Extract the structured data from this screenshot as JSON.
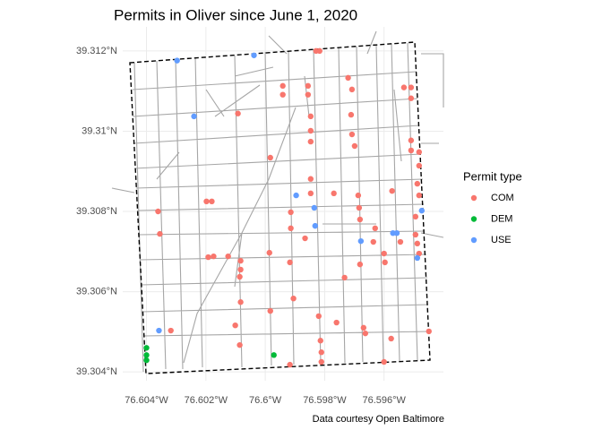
{
  "chart_data": {
    "type": "scatter",
    "title": "Permits in Oliver since June 1, 2020",
    "caption": "Data courtesy Open Baltimore",
    "legend_title": "Permit type",
    "legend": "right",
    "grid": true,
    "xlim": [
      -76.6048,
      -76.594
    ],
    "ylim": [
      39.30378,
      39.3126
    ],
    "xticks": [
      {
        "value": -76.604,
        "label": "76.604°W"
      },
      {
        "value": -76.602,
        "label": "76.602°W"
      },
      {
        "value": -76.6,
        "label": "76.6°W"
      },
      {
        "value": -76.598,
        "label": "76.598°W"
      },
      {
        "value": -76.596,
        "label": "76.596°W"
      }
    ],
    "yticks": [
      {
        "value": 39.304,
        "label": "39.304°N"
      },
      {
        "value": 39.306,
        "label": "39.306°N"
      },
      {
        "value": 39.308,
        "label": "39.308°N"
      },
      {
        "value": 39.31,
        "label": "39.31°N"
      },
      {
        "value": 39.312,
        "label": "39.312°N"
      }
    ],
    "series": [
      {
        "name": "COM",
        "color": "#F8766D",
        "x": [
          -76.59829,
          -76.59817,
          -76.59941,
          -76.59941,
          -76.59856,
          -76.59856,
          -76.59721,
          -76.59708,
          -76.59533,
          -76.59509,
          -76.59509,
          -76.60092,
          -76.59847,
          -76.59847,
          -76.59847,
          -76.59711,
          -76.59708,
          -76.59699,
          -76.59509,
          -76.59509,
          -76.59482,
          -76.59482,
          -76.59983,
          -76.59847,
          -76.59847,
          -76.59769,
          -76.59687,
          -76.59573,
          -76.59488,
          -76.59482,
          -76.60361,
          -76.60355,
          -76.60198,
          -76.6018,
          -76.59914,
          -76.59914,
          -76.59866,
          -76.59684,
          -76.59681,
          -76.5963,
          -76.59494,
          -76.59494,
          -76.59488,
          -76.59482,
          -76.60192,
          -76.60174,
          -76.60125,
          -76.60083,
          -76.60083,
          -76.60086,
          -76.59986,
          -76.59917,
          -76.59733,
          -76.59681,
          -76.59636,
          -76.596,
          -76.59597,
          -76.59545,
          -76.60083,
          -76.60101,
          -76.60086,
          -76.59983,
          -76.59905,
          -76.5982,
          -76.5976,
          -76.59669,
          -76.59663,
          -76.59814,
          -76.59811,
          -76.59811,
          -76.59917,
          -76.596,
          -76.59576,
          -76.60318,
          -76.59449
        ],
        "values": [
          39.312,
          39.312,
          39.31113,
          39.31091,
          39.31113,
          39.31091,
          39.31133,
          39.31104,
          39.31109,
          39.31109,
          39.31082,
          39.31044,
          39.31037,
          39.31001,
          39.30974,
          39.31041,
          39.30992,
          39.30963,
          39.30977,
          39.30952,
          39.30948,
          39.30914,
          39.30934,
          39.30881,
          39.30845,
          39.30845,
          39.3084,
          39.30851,
          39.30869,
          39.3084,
          39.308,
          39.30744,
          39.30825,
          39.30825,
          39.30798,
          39.30758,
          39.30733,
          39.30809,
          39.3078,
          39.30758,
          39.30787,
          39.30742,
          39.3072,
          39.30695,
          39.30686,
          39.30688,
          39.30688,
          39.30677,
          39.30655,
          39.30637,
          39.30697,
          39.30673,
          39.30635,
          39.30668,
          39.30724,
          39.30695,
          39.30673,
          39.30724,
          39.30574,
          39.30516,
          39.30467,
          39.30552,
          39.30583,
          39.30539,
          39.30523,
          39.3051,
          39.30496,
          39.30478,
          39.30449,
          39.30425,
          39.30418,
          39.30425,
          39.30483,
          39.30503,
          39.30501
        ]
      },
      {
        "name": "DEM",
        "color": "#00BA38",
        "x": [
          -76.604,
          -76.604,
          -76.604,
          -76.59971
        ],
        "values": [
          39.3046,
          39.30442,
          39.30429,
          39.30442
        ]
      },
      {
        "name": "USE",
        "color": "#619CFF",
        "x": [
          -76.60297,
          -76.60038,
          -76.6024,
          -76.59896,
          -76.59835,
          -76.59832,
          -76.59678,
          -76.5957,
          -76.59557,
          -76.59473,
          -76.59488,
          -76.60358
        ],
        "values": [
          39.31176,
          39.31189,
          39.31037,
          39.3084,
          39.30809,
          39.30764,
          39.30726,
          39.30746,
          39.30746,
          39.30802,
          39.30684,
          39.30503
        ]
      }
    ]
  }
}
